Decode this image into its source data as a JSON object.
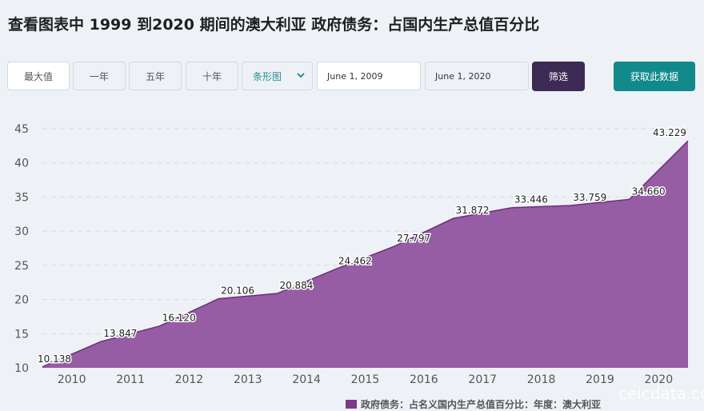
{
  "page": {
    "title": "查看图表中 1999 到2020 期间的澳大利亚 政府债务：占国内生产总值百分比"
  },
  "toolbar": {
    "range_buttons": [
      "最大值",
      "一年",
      "五年",
      "十年"
    ],
    "chart_type": "条形图",
    "start_date": "June 1, 2009",
    "end_date": "June 1, 2020",
    "filter_label": "筛选",
    "get_data_label": "获取此数据"
  },
  "colors": {
    "area_fill": "#8e4f9c",
    "area_line": "#6c2f7c",
    "filter_button": "#3d2a55",
    "get_data_button": "#128a8c"
  },
  "chart_data": {
    "type": "area",
    "x": [
      "2009",
      "2010",
      "2011",
      "2012",
      "2013",
      "2014",
      "2015",
      "2016",
      "2017",
      "2018",
      "2019",
      "2020"
    ],
    "xticks": [
      "2010",
      "2011",
      "2012",
      "2013",
      "2014",
      "2015",
      "2016",
      "2017",
      "2018",
      "2019",
      "2020"
    ],
    "values": [
      10.138,
      13.847,
      16.12,
      20.106,
      20.884,
      24.462,
      27.797,
      31.872,
      33.446,
      33.759,
      34.66,
      43.229
    ],
    "value_labels": [
      "10.138",
      "13.847",
      "16.120",
      "20.106",
      "20.884",
      "24.462",
      "27.797",
      "31.872",
      "33.446",
      "33.759",
      "34.660",
      "43.229"
    ],
    "yticks": [
      10,
      15,
      20,
      25,
      30,
      35,
      40,
      45
    ],
    "ylim": [
      10,
      45
    ],
    "grid": true,
    "legend": "政府债务：占名义国内生产总值百分比：年度：澳大利亚",
    "legend_position": "bottom"
  },
  "watermark": "ceicdata.com"
}
